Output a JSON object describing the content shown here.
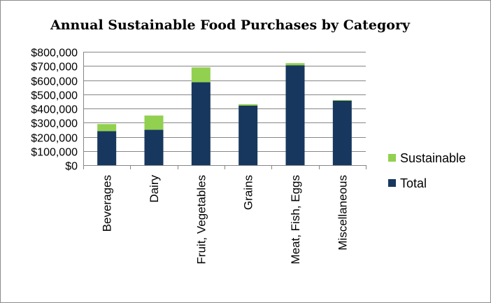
{
  "chart_data": {
    "type": "bar",
    "stacked": true,
    "title": "Annual Sustainable Food Purchases by Category",
    "xlabel": "",
    "ylabel": "",
    "categories": [
      "Beverages",
      "Dairy",
      "Fruit, Vegetables",
      "Grains",
      "Meat, Fish, Eggs",
      "Miscellaneous"
    ],
    "series": [
      {
        "name": "Total",
        "color": "#17375e",
        "values": [
          240000,
          250000,
          585000,
          420000,
          705000,
          455000
        ]
      },
      {
        "name": "Sustainable",
        "color": "#92d050",
        "values": [
          50000,
          100000,
          105000,
          10000,
          15000,
          5000
        ]
      }
    ],
    "ylim": [
      0,
      800000
    ],
    "yticks": [
      0,
      100000,
      200000,
      300000,
      400000,
      500000,
      600000,
      700000,
      800000
    ],
    "ytick_labels": [
      "$0",
      "$100,000",
      "$200,000",
      "$300,000",
      "$400,000",
      "$500,000",
      "$600,000",
      "$700,000",
      "$800,000"
    ],
    "grid": true,
    "legend": {
      "position": "right",
      "entries": [
        "Sustainable",
        "Total"
      ]
    }
  }
}
